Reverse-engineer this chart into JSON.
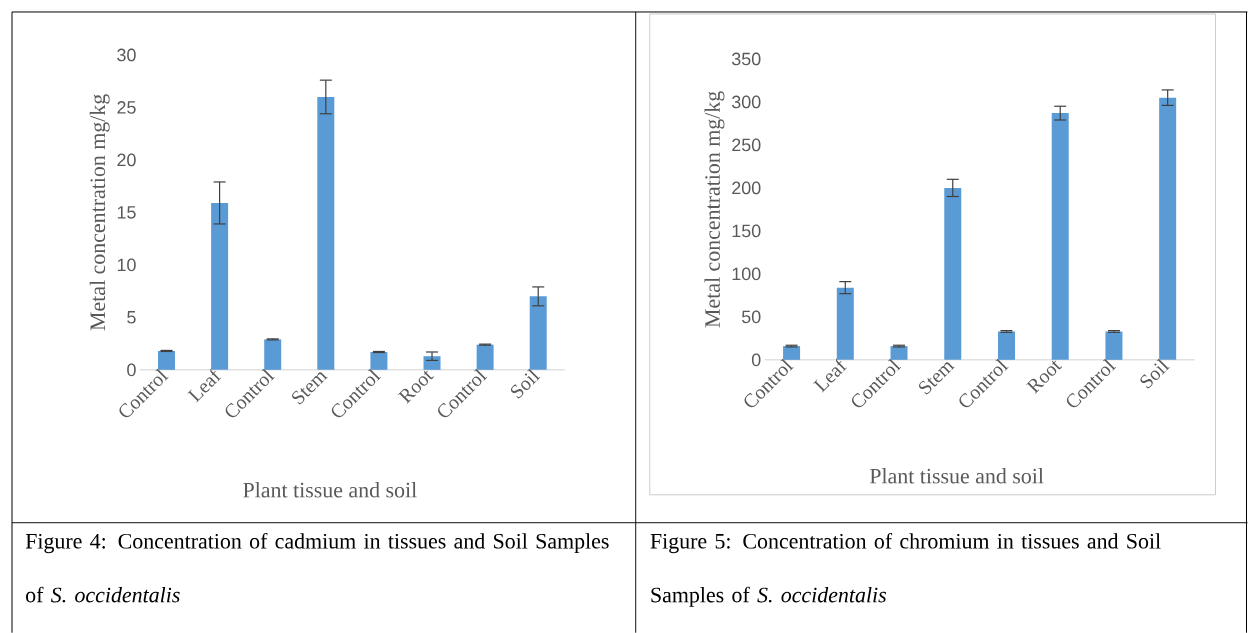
{
  "chart_data": [
    {
      "type": "bar",
      "xlabel": "Plant tissue and soil",
      "ylabel": "Metal concentration mg/kg",
      "color": "#5b9bd5",
      "categories": [
        "Control",
        "Leaf",
        "Control",
        "Stem",
        "Control",
        "Root",
        "Control",
        "Soil"
      ],
      "values": [
        1.8,
        15.9,
        2.9,
        26.0,
        1.7,
        1.3,
        2.4,
        7.0
      ],
      "errors": [
        0.05,
        2.0,
        0.05,
        1.6,
        0.05,
        0.4,
        0.05,
        0.9
      ],
      "ylim": [
        0,
        30
      ],
      "yticks": [
        0,
        5,
        10,
        15,
        20,
        25,
        30
      ],
      "annotations": [
        "Figure 4: Concentration of cadmium in tissues and Soil Samples of *S. occidentalis*"
      ]
    },
    {
      "type": "bar",
      "xlabel": "Plant tissue and soil",
      "ylabel": "Metal concentration mg/kg",
      "color": "#5b9bd5",
      "categories": [
        "Control",
        "Leaf",
        "Control",
        "Stem",
        "Control",
        "Root",
        "Control",
        "Soil"
      ],
      "values": [
        16,
        84,
        16,
        200,
        33,
        287,
        33,
        305
      ],
      "errors": [
        1,
        7,
        1,
        10,
        1,
        8,
        1,
        9
      ],
      "ylim": [
        0,
        350
      ],
      "yticks": [
        0,
        50,
        100,
        150,
        200,
        250,
        300,
        350
      ],
      "annotations": [
        "Figure 5: Concentration of chromium in tissues and Soil Samples of *S. occidentalis*"
      ]
    }
  ]
}
